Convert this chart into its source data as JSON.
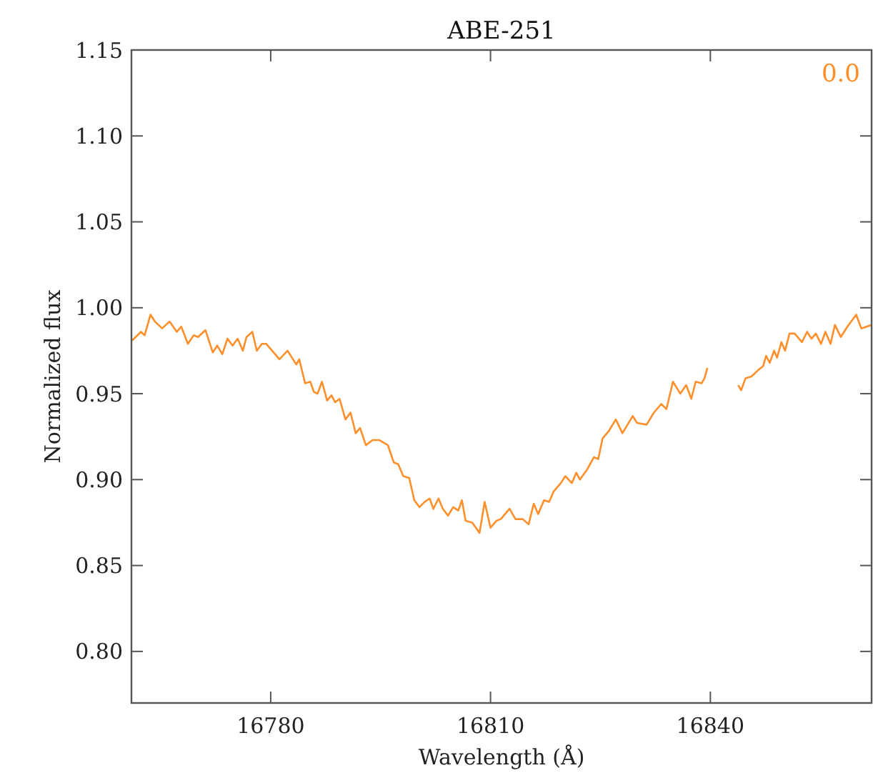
{
  "chart_data": {
    "type": "line",
    "title": "ABE-251",
    "xlabel": "Wavelength (Å)",
    "ylabel": "Normalized flux",
    "annotations": [
      "0.0"
    ],
    "xlim": [
      16761,
      16862
    ],
    "ylim": [
      0.77,
      1.15
    ],
    "xticks": [
      16780,
      16810,
      16840
    ],
    "yticks": [
      {
        "value": 0.8,
        "label": "0.80"
      },
      {
        "value": 0.85,
        "label": "0.85"
      },
      {
        "value": 0.9,
        "label": "0.90"
      },
      {
        "value": 0.95,
        "label": "0.95"
      },
      {
        "value": 1.0,
        "label": "1.00"
      },
      {
        "value": 1.05,
        "label": "1.05"
      },
      {
        "value": 1.1,
        "label": "1.10"
      },
      {
        "value": 1.15,
        "label": "1.15"
      }
    ],
    "grid": false,
    "marker": "none",
    "line_style": "solid",
    "series": [
      {
        "color": "#ff8f2a",
        "x": [
          16761.1,
          16762.3,
          16762.8,
          16763.6,
          16764.2,
          16765.2,
          16766.2,
          16767.2,
          16767.8,
          16768.7,
          16769.5,
          16770.1,
          16771.1,
          16772.1,
          16772.7,
          16773.4,
          16774.1,
          16774.8,
          16775.5,
          16776.2,
          16776.7,
          16777.5,
          16778.1,
          16778.8,
          16779.4,
          16781.2,
          16782.3,
          16783.5,
          16783.9,
          16784.7,
          16785.4,
          16785.9,
          16786.4,
          16787.0,
          16787.7,
          16788.3,
          16788.8,
          16789.4,
          16790.2,
          16790.9,
          16791.6,
          16792.2,
          16793.0,
          16793.9,
          16794.8,
          16796.0,
          16796.8,
          16797.4,
          16798.1,
          16798.9,
          16799.6,
          16800.3,
          16801.0,
          16801.7,
          16802.2,
          16802.9,
          16803.5,
          16804.2,
          16804.9,
          16805.6,
          16806.1,
          16806.6,
          16807.5,
          16808.5,
          16809.2,
          16810.0,
          16810.8,
          16811.4,
          16812.6,
          16813.4,
          16814.4,
          16815.2,
          16815.9,
          16816.5,
          16817.3,
          16818.0,
          16818.6,
          16819.6,
          16820.2,
          16821.1,
          16821.7,
          16822.2,
          16823.2,
          16824.1,
          16824.7,
          16825.3,
          16826.1,
          16827.1,
          16828.0,
          16829.4,
          16830.0,
          16831.3,
          16832.3,
          16833.3,
          16834.0,
          16834.9,
          16835.9,
          16836.7,
          16837.4,
          16838.0,
          16838.8,
          16839.2,
          16839.6,
          16841.7,
          16843.8,
          16844.2,
          16844.8,
          16845.6,
          16846.6,
          16847.2,
          16847.6,
          16848.1,
          16848.7,
          16849.1,
          16849.7,
          16850.2,
          16850.8,
          16851.5,
          16852.5,
          16853.2,
          16853.8,
          16854.4,
          16855.1,
          16855.7,
          16856.4,
          16857.0,
          16857.8,
          16858.7,
          16859.9,
          16860.6,
          16862.0
        ],
        "values": [
          0.981,
          0.986,
          0.984,
          0.996,
          0.992,
          0.988,
          0.992,
          0.986,
          0.989,
          0.979,
          0.984,
          0.983,
          0.987,
          0.974,
          0.978,
          0.973,
          0.982,
          0.978,
          0.982,
          0.975,
          0.983,
          0.986,
          0.975,
          0.979,
          0.979,
          0.97,
          0.975,
          0.967,
          0.97,
          0.956,
          0.957,
          0.951,
          0.95,
          0.957,
          0.946,
          0.949,
          0.945,
          0.947,
          0.935,
          0.939,
          0.927,
          0.93,
          0.92,
          0.923,
          0.923,
          0.92,
          0.91,
          0.909,
          0.902,
          0.901,
          0.888,
          0.884,
          0.887,
          0.889,
          0.883,
          0.889,
          0.883,
          0.879,
          0.884,
          0.882,
          0.888,
          0.876,
          0.875,
          0.869,
          0.887,
          0.872,
          0.876,
          0.877,
          0.883,
          0.877,
          0.877,
          0.874,
          0.886,
          0.88,
          0.888,
          0.887,
          0.893,
          0.898,
          0.902,
          0.898,
          0.904,
          0.9,
          0.906,
          0.913,
          0.912,
          0.924,
          0.928,
          0.935,
          0.927,
          0.937,
          0.933,
          0.932,
          0.939,
          0.944,
          0.941,
          0.957,
          0.95,
          0.955,
          0.947,
          0.957,
          0.956,
          0.959,
          0.965,
          null,
          0.955,
          0.952,
          0.959,
          0.96,
          0.964,
          0.966,
          0.972,
          0.968,
          0.975,
          0.971,
          0.98,
          0.975,
          0.985,
          0.985,
          0.98,
          0.986,
          0.982,
          0.985,
          0.979,
          0.986,
          0.979,
          0.99,
          0.983,
          0.989,
          0.996,
          0.988,
          0.99
        ]
      }
    ]
  }
}
